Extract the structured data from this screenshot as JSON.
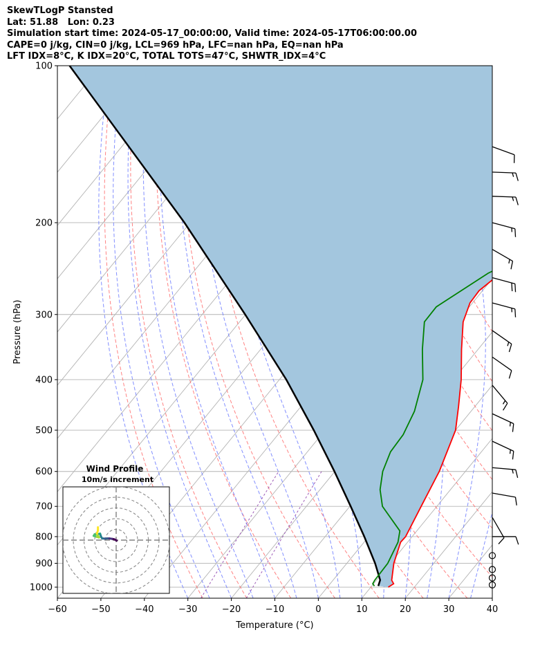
{
  "header": {
    "line1": "SkewTLogP Stansted",
    "line2": "Lat: 51.88   Lon: 0.23",
    "line3": "Simulation start time: 2024-05-17_00:00:00, Valid time: 2024-05-17T06:00:00.00",
    "line4": "CAPE=0 j/kg, CIN=0 j/kg, LCL=969 hPa, LFC=nan hPa, EQ=nan hPa",
    "line5": "LFT IDX=8°C, K IDX=20°C, TOTAL TOTS=47°C, SHWTR_IDX=4°C"
  },
  "chart_data": [
    {
      "type": "skew-t log-p",
      "xlabel": "Temperature (°C)",
      "ylabel": "Pressure (hPa)",
      "xlim": [
        -60,
        40
      ],
      "ylim": [
        1050,
        100
      ],
      "y_scale": "log",
      "x_ticks": [
        "−60",
        "−50",
        "−40",
        "−30",
        "−20",
        "−10",
        "0",
        "10",
        "20",
        "30",
        "40"
      ],
      "y_ticks": [
        "1000",
        "900",
        "800",
        "700",
        "600",
        "500",
        "400",
        "300",
        "200",
        "100"
      ],
      "grid": true,
      "colors": {
        "temperature": "#ff0000",
        "dewpoint": "#008000",
        "parcel": "#000000",
        "shading": "#a3c6de",
        "dry_adiabats": "#ff6b6b",
        "moist_adiabats": "#6272ff",
        "mixing_ratio": "#9b59b6",
        "isotherms": "#b3b3b3"
      },
      "series": [
        {
          "key": "temperature",
          "points": [
            [
              1000,
              14
            ],
            [
              985,
              14.6
            ],
            [
              970,
              13.5
            ],
            [
              900,
              10.8
            ],
            [
              820,
              8.4
            ],
            [
              800,
              8.5
            ],
            [
              700,
              6.4
            ],
            [
              600,
              4
            ],
            [
              500,
              0
            ],
            [
              450,
              -3.8
            ],
            [
              400,
              -8.2
            ],
            [
              350,
              -13.8
            ],
            [
              310,
              -18.6
            ],
            [
              285,
              -20.6
            ],
            [
              270,
              -20.8
            ],
            [
              235,
              -17.8
            ],
            [
              200,
              -12.8
            ],
            [
              185,
              -13.3
            ],
            [
              150,
              -17
            ],
            [
              130,
              -21.2
            ],
            [
              115,
              -25.8
            ],
            [
              100,
              -31
            ]
          ]
        },
        {
          "key": "dewpoint",
          "points": [
            [
              995,
              10.6
            ],
            [
              985,
              9.8
            ],
            [
              970,
              9.6
            ],
            [
              900,
              9.4
            ],
            [
              820,
              7.8
            ],
            [
              780,
              6.1
            ],
            [
              700,
              -2.5
            ],
            [
              650,
              -6.2
            ],
            [
              600,
              -9
            ],
            [
              550,
              -10.9
            ],
            [
              510,
              -11.2
            ],
            [
              460,
              -13
            ],
            [
              400,
              -17
            ],
            [
              350,
              -22.8
            ],
            [
              310,
              -27.5
            ],
            [
              290,
              -27.6
            ],
            [
              250,
              -22
            ],
            [
              235,
              -18
            ],
            [
              215,
              -15
            ],
            [
              200,
              -16.4
            ],
            [
              185,
              -16.5
            ],
            [
              150,
              -23.8
            ],
            [
              120,
              -31.8
            ],
            [
              100,
              -39.5
            ]
          ]
        },
        {
          "key": "parcel",
          "points": [
            [
              995,
              11.5
            ],
            [
              969,
              10.8
            ],
            [
              900,
              6.5
            ],
            [
              800,
              -1
            ],
            [
              700,
              -9.8
            ],
            [
              600,
              -20.1
            ],
            [
              500,
              -32.6
            ],
            [
              400,
              -48.4
            ],
            [
              300,
              -70.1
            ],
            [
              200,
              -101.3
            ],
            [
              100,
              -157.2
            ]
          ]
        }
      ],
      "wind_barbs": [
        {
          "p": 990,
          "ws": 3,
          "wd": 0
        },
        {
          "p": 960,
          "ws": 3,
          "wd": 0
        },
        {
          "p": 925,
          "ws": 3,
          "wd": 0
        },
        {
          "p": 870,
          "ws": 3,
          "wd": 0
        },
        {
          "p": 800,
          "ws": 9,
          "wd": 90
        },
        {
          "p": 735,
          "ws": 11,
          "wd": 150
        },
        {
          "p": 660,
          "ws": 12,
          "wd": 100
        },
        {
          "p": 590,
          "ws": 17,
          "wd": 95
        },
        {
          "p": 525,
          "ws": 16,
          "wd": 115
        },
        {
          "p": 465,
          "ws": 17,
          "wd": 115
        },
        {
          "p": 410,
          "ws": 15,
          "wd": 140
        },
        {
          "p": 362,
          "ws": 11,
          "wd": 125
        },
        {
          "p": 322,
          "ws": 15,
          "wd": 125
        },
        {
          "p": 285,
          "ws": 17,
          "wd": 105
        },
        {
          "p": 255,
          "ws": 18,
          "wd": 105
        },
        {
          "p": 225,
          "ws": 16,
          "wd": 120
        },
        {
          "p": 200,
          "ws": 14,
          "wd": 105
        },
        {
          "p": 178,
          "ws": 14,
          "wd": 92
        },
        {
          "p": 160,
          "ws": 14,
          "wd": 92
        },
        {
          "p": 143,
          "ws": 11,
          "wd": 110
        }
      ]
    },
    {
      "type": "scatter",
      "title": "Wind Profile",
      "subtitle": "10m/s increment",
      "ring_step": 10,
      "colormap": "viridis",
      "points": [
        [
          0.5,
          -0.5
        ],
        [
          -0.8,
          0.3
        ],
        [
          -2,
          0.8
        ],
        [
          -4,
          1.2
        ],
        [
          -6,
          1.5
        ],
        [
          -8,
          1.6
        ],
        [
          -10,
          1.4
        ],
        [
          -13,
          1.5
        ],
        [
          -14,
          3
        ],
        [
          -15,
          6
        ],
        [
          -17,
          5.5
        ],
        [
          -20,
          5.5
        ],
        [
          -21,
          4
        ],
        [
          -18,
          3
        ],
        [
          -16,
          2.5
        ],
        [
          -18,
          6
        ],
        [
          -17,
          9
        ],
        [
          -17,
          12
        ]
      ]
    }
  ]
}
